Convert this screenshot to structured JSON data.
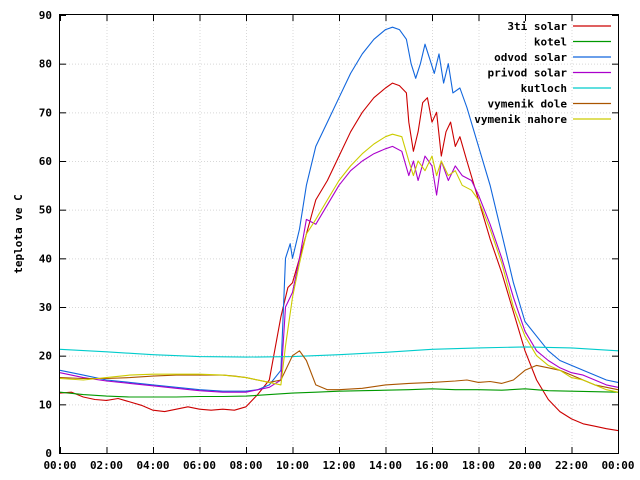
{
  "chart_data": {
    "type": "line",
    "ylabel": "teplota ve C",
    "ylim": [
      0,
      90
    ],
    "yticks": [
      0,
      10,
      20,
      30,
      40,
      50,
      60,
      70,
      80,
      90
    ],
    "xlim": [
      0,
      24
    ],
    "xticks": [
      "00:00",
      "02:00",
      "04:00",
      "06:00",
      "08:00",
      "10:00",
      "12:00",
      "14:00",
      "16:00",
      "18:00",
      "20:00",
      "22:00",
      "00:00"
    ],
    "grid": true,
    "legend_position": "top-right",
    "series": [
      {
        "name": "3ti solar",
        "color": "#cc0000",
        "points": [
          [
            0,
            12.3
          ],
          [
            0.5,
            12.5
          ],
          [
            1,
            11.5
          ],
          [
            1.5,
            11
          ],
          [
            2,
            10.8
          ],
          [
            2.5,
            11.2
          ],
          [
            3,
            10.5
          ],
          [
            3.5,
            9.8
          ],
          [
            4,
            8.8
          ],
          [
            4.5,
            8.5
          ],
          [
            5,
            9
          ],
          [
            5.5,
            9.5
          ],
          [
            6,
            9
          ],
          [
            6.5,
            8.8
          ],
          [
            7,
            9
          ],
          [
            7.5,
            8.8
          ],
          [
            8,
            9.5
          ],
          [
            8.5,
            12
          ],
          [
            9,
            15
          ],
          [
            9.5,
            28
          ],
          [
            9.8,
            34
          ],
          [
            10,
            35
          ],
          [
            10.3,
            40
          ],
          [
            10.6,
            45
          ],
          [
            11,
            52
          ],
          [
            11.5,
            56
          ],
          [
            12,
            61
          ],
          [
            12.5,
            66
          ],
          [
            13,
            70
          ],
          [
            13.5,
            73
          ],
          [
            14,
            75
          ],
          [
            14.3,
            76
          ],
          [
            14.6,
            75.5
          ],
          [
            14.9,
            74
          ],
          [
            15,
            68
          ],
          [
            15.2,
            62
          ],
          [
            15.4,
            66
          ],
          [
            15.6,
            72
          ],
          [
            15.8,
            73
          ],
          [
            16,
            68
          ],
          [
            16.2,
            70
          ],
          [
            16.4,
            61
          ],
          [
            16.6,
            66
          ],
          [
            16.8,
            68
          ],
          [
            17,
            63
          ],
          [
            17.2,
            65
          ],
          [
            17.5,
            60
          ],
          [
            18,
            52
          ],
          [
            18.5,
            44
          ],
          [
            19,
            37
          ],
          [
            19.5,
            29
          ],
          [
            20,
            21
          ],
          [
            20.5,
            15
          ],
          [
            21,
            11
          ],
          [
            21.5,
            8.5
          ],
          [
            22,
            7
          ],
          [
            22.5,
            6
          ],
          [
            23,
            5.5
          ],
          [
            23.5,
            5
          ],
          [
            24,
            4.6
          ]
        ]
      },
      {
        "name": "kotel",
        "color": "#009900",
        "points": [
          [
            0,
            12.5
          ],
          [
            1,
            12
          ],
          [
            2,
            11.7
          ],
          [
            3,
            11.5
          ],
          [
            4,
            11.5
          ],
          [
            5,
            11.5
          ],
          [
            6,
            11.6
          ],
          [
            7,
            11.6
          ],
          [
            8,
            11.7
          ],
          [
            9,
            12
          ],
          [
            10,
            12.3
          ],
          [
            11,
            12.5
          ],
          [
            12,
            12.7
          ],
          [
            13,
            12.8
          ],
          [
            14,
            12.9
          ],
          [
            15,
            13
          ],
          [
            16,
            13.2
          ],
          [
            17,
            13
          ],
          [
            18,
            13
          ],
          [
            19,
            12.9
          ],
          [
            20,
            13.2
          ],
          [
            21,
            12.8
          ],
          [
            22,
            12.7
          ],
          [
            23,
            12.6
          ],
          [
            24,
            12.5
          ]
        ]
      },
      {
        "name": "odvod solar",
        "color": "#1166dd",
        "points": [
          [
            0,
            17
          ],
          [
            1,
            16
          ],
          [
            2,
            15
          ],
          [
            3,
            14.5
          ],
          [
            4,
            14
          ],
          [
            5,
            13.5
          ],
          [
            6,
            13
          ],
          [
            7,
            12.7
          ],
          [
            8,
            12.7
          ],
          [
            8.5,
            13
          ],
          [
            9,
            14
          ],
          [
            9.5,
            17
          ],
          [
            9.7,
            40
          ],
          [
            9.9,
            43
          ],
          [
            10,
            40
          ],
          [
            10.3,
            46
          ],
          [
            10.6,
            55
          ],
          [
            11,
            63
          ],
          [
            11.5,
            68
          ],
          [
            12,
            73
          ],
          [
            12.5,
            78
          ],
          [
            13,
            82
          ],
          [
            13.5,
            85
          ],
          [
            14,
            87
          ],
          [
            14.3,
            87.5
          ],
          [
            14.6,
            87
          ],
          [
            14.9,
            85
          ],
          [
            15.1,
            80
          ],
          [
            15.3,
            77
          ],
          [
            15.5,
            80
          ],
          [
            15.7,
            84
          ],
          [
            15.9,
            81
          ],
          [
            16.1,
            78
          ],
          [
            16.3,
            82
          ],
          [
            16.5,
            76
          ],
          [
            16.7,
            80
          ],
          [
            16.9,
            74
          ],
          [
            17.2,
            75
          ],
          [
            17.5,
            71
          ],
          [
            18,
            63
          ],
          [
            18.5,
            55
          ],
          [
            19,
            45
          ],
          [
            19.5,
            35
          ],
          [
            20,
            27
          ],
          [
            20.5,
            24
          ],
          [
            21,
            21
          ],
          [
            21.5,
            19
          ],
          [
            22,
            18
          ],
          [
            22.5,
            17
          ],
          [
            23,
            16
          ],
          [
            23.5,
            15
          ],
          [
            24,
            14.5
          ]
        ]
      },
      {
        "name": "privod solar",
        "color": "#aa00cc",
        "points": [
          [
            0,
            16.5
          ],
          [
            1,
            15.5
          ],
          [
            2,
            14.8
          ],
          [
            3,
            14.3
          ],
          [
            4,
            13.8
          ],
          [
            5,
            13.3
          ],
          [
            6,
            12.8
          ],
          [
            7,
            12.5
          ],
          [
            8,
            12.5
          ],
          [
            9,
            13.5
          ],
          [
            9.5,
            15
          ],
          [
            9.7,
            30
          ],
          [
            10,
            33
          ],
          [
            10.3,
            40
          ],
          [
            10.6,
            48
          ],
          [
            11,
            47
          ],
          [
            11.5,
            51
          ],
          [
            12,
            55
          ],
          [
            12.5,
            58
          ],
          [
            13,
            60
          ],
          [
            13.5,
            61.5
          ],
          [
            14,
            62.5
          ],
          [
            14.3,
            63
          ],
          [
            14.7,
            62
          ],
          [
            15,
            57
          ],
          [
            15.2,
            60
          ],
          [
            15.4,
            56
          ],
          [
            15.7,
            61
          ],
          [
            16,
            59
          ],
          [
            16.2,
            53
          ],
          [
            16.4,
            60
          ],
          [
            16.7,
            56
          ],
          [
            17,
            59
          ],
          [
            17.3,
            57
          ],
          [
            17.7,
            56
          ],
          [
            18,
            53
          ],
          [
            18.5,
            47
          ],
          [
            19,
            40
          ],
          [
            19.5,
            32
          ],
          [
            20,
            25
          ],
          [
            20.5,
            21
          ],
          [
            21,
            19
          ],
          [
            21.5,
            17.5
          ],
          [
            22,
            16.5
          ],
          [
            22.5,
            16
          ],
          [
            23,
            15
          ],
          [
            23.5,
            14
          ],
          [
            24,
            13.5
          ]
        ]
      },
      {
        "name": "kutloch",
        "color": "#00cccc",
        "points": [
          [
            0,
            21.3
          ],
          [
            2,
            20.8
          ],
          [
            4,
            20.2
          ],
          [
            6,
            19.8
          ],
          [
            8,
            19.7
          ],
          [
            10,
            19.8
          ],
          [
            12,
            20.2
          ],
          [
            14,
            20.7
          ],
          [
            16,
            21.3
          ],
          [
            18,
            21.6
          ],
          [
            20,
            21.8
          ],
          [
            22,
            21.6
          ],
          [
            24,
            21
          ]
        ]
      },
      {
        "name": "vymenik dole",
        "color": "#aa5500",
        "points": [
          [
            0,
            15.5
          ],
          [
            1,
            15.3
          ],
          [
            2,
            15.3
          ],
          [
            3,
            15.5
          ],
          [
            4,
            15.8
          ],
          [
            5,
            16
          ],
          [
            6,
            16
          ],
          [
            7,
            16
          ],
          [
            7.5,
            15.8
          ],
          [
            8,
            15.5
          ],
          [
            8.5,
            15
          ],
          [
            9,
            14.5
          ],
          [
            9.5,
            15
          ],
          [
            10,
            20
          ],
          [
            10.3,
            21
          ],
          [
            10.6,
            19
          ],
          [
            11,
            14
          ],
          [
            11.5,
            13
          ],
          [
            12,
            13
          ],
          [
            13,
            13.3
          ],
          [
            14,
            14
          ],
          [
            15,
            14.3
          ],
          [
            16,
            14.5
          ],
          [
            17,
            14.8
          ],
          [
            17.5,
            15
          ],
          [
            18,
            14.5
          ],
          [
            18.5,
            14.7
          ],
          [
            19,
            14.3
          ],
          [
            19.5,
            15
          ],
          [
            20,
            17
          ],
          [
            20.5,
            18
          ],
          [
            21,
            17.5
          ],
          [
            21.5,
            17
          ],
          [
            22,
            16
          ],
          [
            22.5,
            15
          ],
          [
            23,
            14
          ],
          [
            23.5,
            13.5
          ],
          [
            24,
            13
          ]
        ]
      },
      {
        "name": "vymenik nahore",
        "color": "#cccc00",
        "points": [
          [
            0,
            15.3
          ],
          [
            1,
            15
          ],
          [
            2,
            15.5
          ],
          [
            3,
            16
          ],
          [
            4,
            16.2
          ],
          [
            5,
            16.2
          ],
          [
            6,
            16.2
          ],
          [
            7,
            16
          ],
          [
            8,
            15.5
          ],
          [
            9,
            14.5
          ],
          [
            9.5,
            14
          ],
          [
            9.7,
            22
          ],
          [
            10,
            32
          ],
          [
            10.3,
            39
          ],
          [
            10.6,
            45
          ],
          [
            11,
            48
          ],
          [
            11.5,
            52
          ],
          [
            12,
            56
          ],
          [
            12.5,
            59
          ],
          [
            13,
            61.5
          ],
          [
            13.5,
            63.5
          ],
          [
            14,
            65
          ],
          [
            14.3,
            65.5
          ],
          [
            14.7,
            65
          ],
          [
            15,
            60
          ],
          [
            15.2,
            57
          ],
          [
            15.4,
            60
          ],
          [
            15.7,
            58
          ],
          [
            16,
            61
          ],
          [
            16.2,
            57
          ],
          [
            16.4,
            60
          ],
          [
            16.7,
            57
          ],
          [
            17,
            58
          ],
          [
            17.3,
            55
          ],
          [
            17.7,
            54
          ],
          [
            18,
            52
          ],
          [
            18.5,
            46
          ],
          [
            19,
            39
          ],
          [
            19.5,
            30
          ],
          [
            20,
            24
          ],
          [
            20.5,
            20
          ],
          [
            21,
            18
          ],
          [
            21.5,
            17
          ],
          [
            22,
            15.5
          ],
          [
            22.5,
            15
          ],
          [
            23,
            14
          ],
          [
            23.5,
            13
          ],
          [
            24,
            12.5
          ]
        ]
      }
    ]
  }
}
